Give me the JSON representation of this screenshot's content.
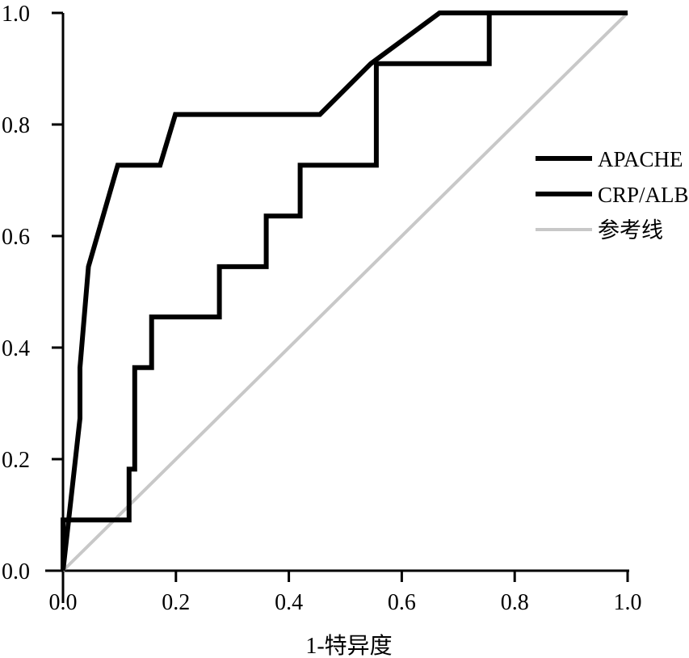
{
  "chart_data": {
    "type": "line",
    "title": "",
    "xlabel": "1-特异度",
    "ylabel": "",
    "xlim": [
      0,
      1
    ],
    "ylim": [
      0,
      1
    ],
    "xticks": [
      "0.0",
      "0.2",
      "0.4",
      "0.6",
      "0.8",
      "1.0"
    ],
    "yticks": [
      "0.0",
      "0.2",
      "0.4",
      "0.6",
      "0.8",
      "1.0"
    ],
    "grid": false,
    "legend_position": "right",
    "series": [
      {
        "name": "APACHE",
        "color": "#000000",
        "points": [
          [
            0,
            0
          ],
          [
            0.03,
            0.273
          ],
          [
            0.03,
            0.364
          ],
          [
            0.045,
            0.545
          ],
          [
            0.097,
            0.727
          ],
          [
            0.172,
            0.727
          ],
          [
            0.199,
            0.818
          ],
          [
            0.455,
            0.818
          ],
          [
            0.545,
            0.909
          ],
          [
            0.667,
            1.0
          ],
          [
            1.0,
            1.0
          ]
        ]
      },
      {
        "name": "CRP/ALB",
        "color": "#000000",
        "points": [
          [
            0,
            0
          ],
          [
            0,
            0.091
          ],
          [
            0.117,
            0.091
          ],
          [
            0.117,
            0.182
          ],
          [
            0.127,
            0.182
          ],
          [
            0.127,
            0.364
          ],
          [
            0.157,
            0.364
          ],
          [
            0.157,
            0.455
          ],
          [
            0.277,
            0.455
          ],
          [
            0.277,
            0.545
          ],
          [
            0.36,
            0.545
          ],
          [
            0.36,
            0.636
          ],
          [
            0.42,
            0.636
          ],
          [
            0.42,
            0.727
          ],
          [
            0.555,
            0.727
          ],
          [
            0.555,
            0.909
          ],
          [
            0.755,
            0.909
          ],
          [
            0.755,
            1.0
          ],
          [
            1.0,
            1.0
          ]
        ]
      },
      {
        "name": "参考线",
        "color": "#c8c8c8",
        "points": [
          [
            0,
            0
          ],
          [
            1,
            1
          ]
        ]
      }
    ]
  }
}
